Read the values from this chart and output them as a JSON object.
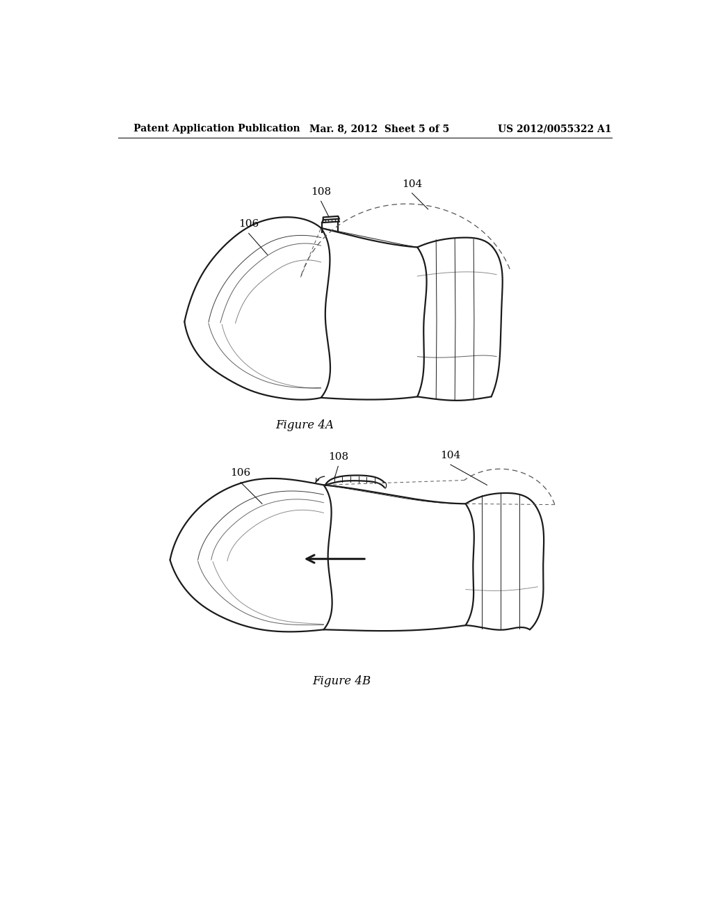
{
  "background_color": "#ffffff",
  "header_left": "Patent Application Publication",
  "header_center": "Mar. 8, 2012  Sheet 5 of 5",
  "header_right": "US 2012/0055322 A1",
  "fig4a_caption": "Figure 4A",
  "fig4b_caption": "Figure 4B",
  "label_104a": "104",
  "label_108a": "108",
  "label_106a": "106",
  "label_104b": "104",
  "label_108b": "108",
  "label_106b": "106",
  "line_color": "#1a1a1a",
  "dashed_color": "#555555",
  "text_color": "#000000",
  "header_fontsize": 10,
  "label_fontsize": 11,
  "caption_fontsize": 12
}
